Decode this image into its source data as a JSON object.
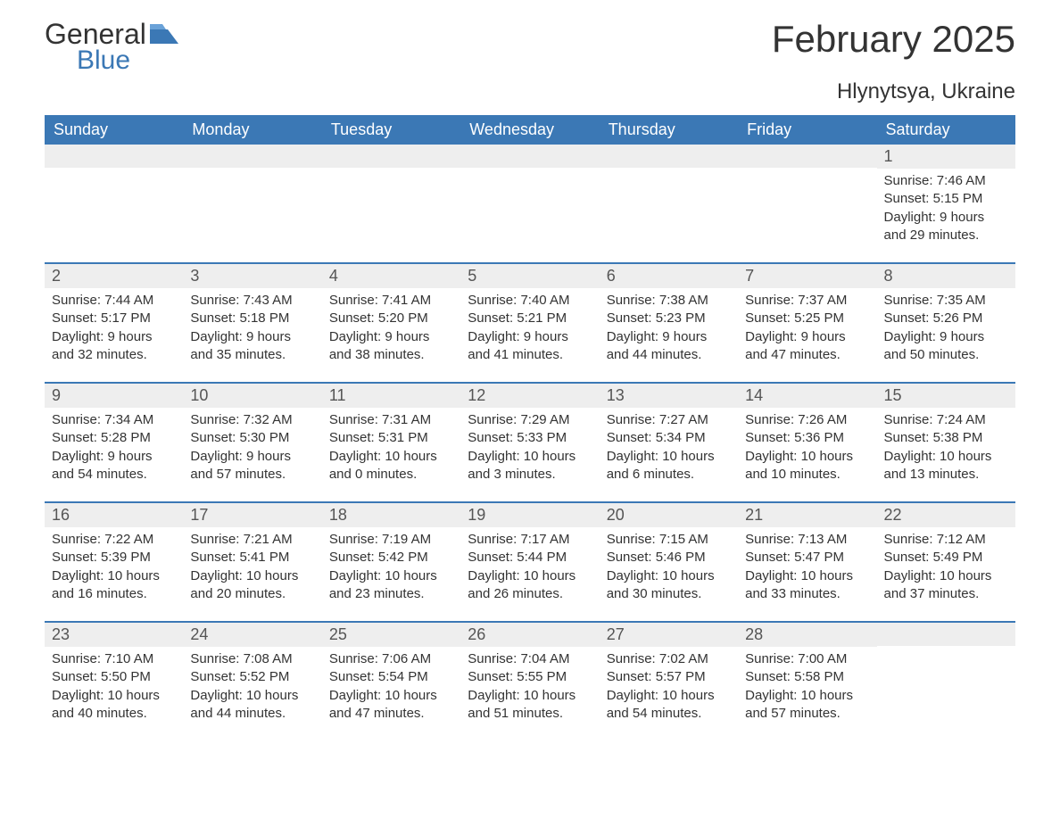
{
  "logo": {
    "general": "General",
    "blue": "Blue"
  },
  "title": "February 2025",
  "location": "Hlynytsya, Ukraine",
  "colors": {
    "header_bg": "#3b78b5",
    "header_text": "#ffffff",
    "daynum_bg": "#eeeeee",
    "text": "#333333",
    "logo_blue": "#3b78b5",
    "page_bg": "#ffffff",
    "divider": "#3b78b5"
  },
  "weekdays": [
    "Sunday",
    "Monday",
    "Tuesday",
    "Wednesday",
    "Thursday",
    "Friday",
    "Saturday"
  ],
  "weeks": [
    [
      {
        "n": "",
        "sunrise": "",
        "sunset": "",
        "daylight": ""
      },
      {
        "n": "",
        "sunrise": "",
        "sunset": "",
        "daylight": ""
      },
      {
        "n": "",
        "sunrise": "",
        "sunset": "",
        "daylight": ""
      },
      {
        "n": "",
        "sunrise": "",
        "sunset": "",
        "daylight": ""
      },
      {
        "n": "",
        "sunrise": "",
        "sunset": "",
        "daylight": ""
      },
      {
        "n": "",
        "sunrise": "",
        "sunset": "",
        "daylight": ""
      },
      {
        "n": "1",
        "sunrise": "Sunrise: 7:46 AM",
        "sunset": "Sunset: 5:15 PM",
        "daylight": "Daylight: 9 hours and 29 minutes."
      }
    ],
    [
      {
        "n": "2",
        "sunrise": "Sunrise: 7:44 AM",
        "sunset": "Sunset: 5:17 PM",
        "daylight": "Daylight: 9 hours and 32 minutes."
      },
      {
        "n": "3",
        "sunrise": "Sunrise: 7:43 AM",
        "sunset": "Sunset: 5:18 PM",
        "daylight": "Daylight: 9 hours and 35 minutes."
      },
      {
        "n": "4",
        "sunrise": "Sunrise: 7:41 AM",
        "sunset": "Sunset: 5:20 PM",
        "daylight": "Daylight: 9 hours and 38 minutes."
      },
      {
        "n": "5",
        "sunrise": "Sunrise: 7:40 AM",
        "sunset": "Sunset: 5:21 PM",
        "daylight": "Daylight: 9 hours and 41 minutes."
      },
      {
        "n": "6",
        "sunrise": "Sunrise: 7:38 AM",
        "sunset": "Sunset: 5:23 PM",
        "daylight": "Daylight: 9 hours and 44 minutes."
      },
      {
        "n": "7",
        "sunrise": "Sunrise: 7:37 AM",
        "sunset": "Sunset: 5:25 PM",
        "daylight": "Daylight: 9 hours and 47 minutes."
      },
      {
        "n": "8",
        "sunrise": "Sunrise: 7:35 AM",
        "sunset": "Sunset: 5:26 PM",
        "daylight": "Daylight: 9 hours and 50 minutes."
      }
    ],
    [
      {
        "n": "9",
        "sunrise": "Sunrise: 7:34 AM",
        "sunset": "Sunset: 5:28 PM",
        "daylight": "Daylight: 9 hours and 54 minutes."
      },
      {
        "n": "10",
        "sunrise": "Sunrise: 7:32 AM",
        "sunset": "Sunset: 5:30 PM",
        "daylight": "Daylight: 9 hours and 57 minutes."
      },
      {
        "n": "11",
        "sunrise": "Sunrise: 7:31 AM",
        "sunset": "Sunset: 5:31 PM",
        "daylight": "Daylight: 10 hours and 0 minutes."
      },
      {
        "n": "12",
        "sunrise": "Sunrise: 7:29 AM",
        "sunset": "Sunset: 5:33 PM",
        "daylight": "Daylight: 10 hours and 3 minutes."
      },
      {
        "n": "13",
        "sunrise": "Sunrise: 7:27 AM",
        "sunset": "Sunset: 5:34 PM",
        "daylight": "Daylight: 10 hours and 6 minutes."
      },
      {
        "n": "14",
        "sunrise": "Sunrise: 7:26 AM",
        "sunset": "Sunset: 5:36 PM",
        "daylight": "Daylight: 10 hours and 10 minutes."
      },
      {
        "n": "15",
        "sunrise": "Sunrise: 7:24 AM",
        "sunset": "Sunset: 5:38 PM",
        "daylight": "Daylight: 10 hours and 13 minutes."
      }
    ],
    [
      {
        "n": "16",
        "sunrise": "Sunrise: 7:22 AM",
        "sunset": "Sunset: 5:39 PM",
        "daylight": "Daylight: 10 hours and 16 minutes."
      },
      {
        "n": "17",
        "sunrise": "Sunrise: 7:21 AM",
        "sunset": "Sunset: 5:41 PM",
        "daylight": "Daylight: 10 hours and 20 minutes."
      },
      {
        "n": "18",
        "sunrise": "Sunrise: 7:19 AM",
        "sunset": "Sunset: 5:42 PM",
        "daylight": "Daylight: 10 hours and 23 minutes."
      },
      {
        "n": "19",
        "sunrise": "Sunrise: 7:17 AM",
        "sunset": "Sunset: 5:44 PM",
        "daylight": "Daylight: 10 hours and 26 minutes."
      },
      {
        "n": "20",
        "sunrise": "Sunrise: 7:15 AM",
        "sunset": "Sunset: 5:46 PM",
        "daylight": "Daylight: 10 hours and 30 minutes."
      },
      {
        "n": "21",
        "sunrise": "Sunrise: 7:13 AM",
        "sunset": "Sunset: 5:47 PM",
        "daylight": "Daylight: 10 hours and 33 minutes."
      },
      {
        "n": "22",
        "sunrise": "Sunrise: 7:12 AM",
        "sunset": "Sunset: 5:49 PM",
        "daylight": "Daylight: 10 hours and 37 minutes."
      }
    ],
    [
      {
        "n": "23",
        "sunrise": "Sunrise: 7:10 AM",
        "sunset": "Sunset: 5:50 PM",
        "daylight": "Daylight: 10 hours and 40 minutes."
      },
      {
        "n": "24",
        "sunrise": "Sunrise: 7:08 AM",
        "sunset": "Sunset: 5:52 PM",
        "daylight": "Daylight: 10 hours and 44 minutes."
      },
      {
        "n": "25",
        "sunrise": "Sunrise: 7:06 AM",
        "sunset": "Sunset: 5:54 PM",
        "daylight": "Daylight: 10 hours and 47 minutes."
      },
      {
        "n": "26",
        "sunrise": "Sunrise: 7:04 AM",
        "sunset": "Sunset: 5:55 PM",
        "daylight": "Daylight: 10 hours and 51 minutes."
      },
      {
        "n": "27",
        "sunrise": "Sunrise: 7:02 AM",
        "sunset": "Sunset: 5:57 PM",
        "daylight": "Daylight: 10 hours and 54 minutes."
      },
      {
        "n": "28",
        "sunrise": "Sunrise: 7:00 AM",
        "sunset": "Sunset: 5:58 PM",
        "daylight": "Daylight: 10 hours and 57 minutes."
      },
      {
        "n": "",
        "sunrise": "",
        "sunset": "",
        "daylight": ""
      }
    ]
  ]
}
